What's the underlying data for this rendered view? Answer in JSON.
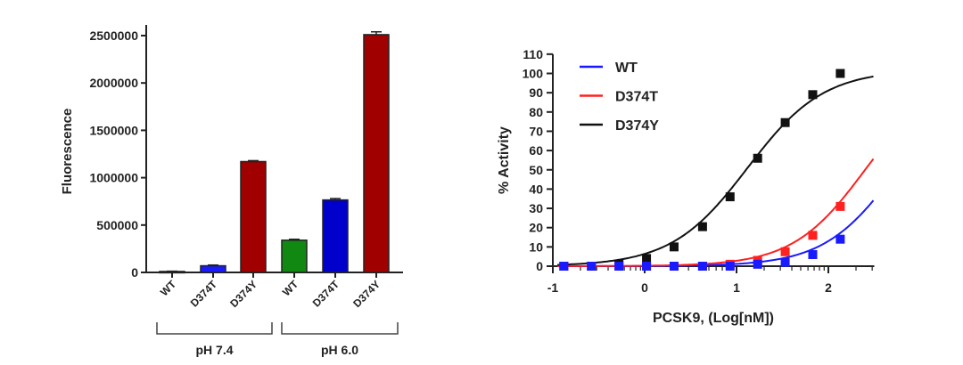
{
  "chart_data": [
    {
      "type": "bar",
      "ylabel": "Fluorescence",
      "ylim": [
        0,
        2500000
      ],
      "yticks": [
        0,
        500000,
        1000000,
        1500000,
        2000000,
        2500000
      ],
      "categories": [
        "WT",
        "D374T",
        "D374Y",
        "WT",
        "D374T",
        "D374Y"
      ],
      "groups": [
        {
          "label": "pH 7.4",
          "members": [
            0,
            1,
            2
          ]
        },
        {
          "label": "pH 6.0",
          "members": [
            3,
            4,
            5
          ]
        }
      ],
      "values": [
        10000,
        70000,
        1170000,
        340000,
        765000,
        2510000
      ],
      "errors": [
        3000,
        8000,
        10000,
        10000,
        15000,
        30000
      ],
      "colors": [
        "#1a1aff",
        "#1a1aff",
        "#a00000",
        "#118811",
        "#0000cc",
        "#a00000"
      ]
    },
    {
      "type": "scatter",
      "xlabel": "PCSK9, (Log[nM])",
      "ylabel": "% Activity",
      "xlim": [
        -1,
        2.5
      ],
      "ylim": [
        0,
        110
      ],
      "xticks": [
        -1,
        0,
        1,
        2
      ],
      "yticks": [
        0,
        10,
        20,
        30,
        40,
        50,
        60,
        70,
        80,
        90,
        100,
        110
      ],
      "legend_position": "top-left",
      "x": [
        -0.88,
        -0.58,
        -0.28,
        0.02,
        0.32,
        0.63,
        0.93,
        1.23,
        1.53,
        1.83,
        2.13
      ],
      "series": [
        {
          "name": "WT",
          "color": "#1a1aff",
          "values": [
            0,
            0,
            0,
            0,
            0,
            0,
            0,
            1,
            2,
            6,
            14
          ],
          "fit": {
            "bottom": 0,
            "top": 100,
            "ec50_log": 2.75,
            "hill": 1.1
          }
        },
        {
          "name": "D374T",
          "color": "#ff2020",
          "values": [
            0,
            0,
            0,
            0,
            0,
            0,
            1,
            3,
            7.5,
            16,
            31
          ],
          "fit": {
            "bottom": 0,
            "top": 100,
            "ec50_log": 2.4,
            "hill": 1.1
          }
        },
        {
          "name": "D374Y",
          "color": "#111111",
          "values": [
            0,
            0,
            1,
            4,
            10,
            20.5,
            36,
            56,
            74.5,
            89,
            100
          ],
          "fit": {
            "bottom": 0,
            "top": 102,
            "ec50_log": 1.12,
            "hill": 1.05
          }
        }
      ]
    }
  ]
}
